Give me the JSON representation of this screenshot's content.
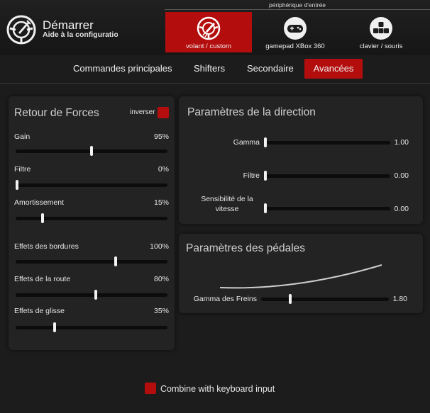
{
  "header": {
    "title": "Démarrer",
    "subtitle": "Aide à la configuratio",
    "device_caption": "périphérique d'entrée",
    "devices": [
      {
        "label": "volant / custom",
        "icon": "steering-wheel-icon",
        "active": true
      },
      {
        "label": "gamepad XBox 360",
        "icon": "gamepad-icon",
        "active": false
      },
      {
        "label": "clavier / souris",
        "icon": "keyboard-icon",
        "active": false
      }
    ]
  },
  "tabs": [
    {
      "label": "Commandes principales",
      "active": false
    },
    {
      "label": "Shifters",
      "active": false
    },
    {
      "label": "Secondaire",
      "active": false
    },
    {
      "label": "Avancées",
      "active": true
    }
  ],
  "force_feedback": {
    "title": "Retour de Forces",
    "invert_label": "inverser",
    "invert_checked": true,
    "sliders": [
      {
        "label": "Gain",
        "value": "95%",
        "level": 0.5
      },
      {
        "label": "Filtre",
        "value": "0%",
        "level": 0.0
      },
      {
        "label": "Amortissement",
        "value": "15%",
        "level": 0.17
      },
      {
        "label": "Effets des bordures",
        "value": "100%",
        "level": 0.66
      },
      {
        "label": "Effets de la route",
        "value": "80%",
        "level": 0.53
      },
      {
        "label": "Effets de glisse",
        "value": "35%",
        "level": 0.25
      }
    ]
  },
  "steering": {
    "title": "Paramètres de la direction",
    "sliders": [
      {
        "label": "Gamma",
        "value": "1.00",
        "level": 0.0
      },
      {
        "label": "Filtre",
        "value": "0.00",
        "level": 0.0
      },
      {
        "label": "Sensibilité de la vitesse",
        "value": "0.00",
        "level": 0.0
      }
    ]
  },
  "pedals": {
    "title": "Paramètres des pédales",
    "sliders": [
      {
        "label": "Gamma des Freins",
        "value": "1.80",
        "level": 0.22
      }
    ]
  },
  "combine": {
    "label": "Combine with keyboard input",
    "checked": true
  },
  "colors": {
    "accent": "#b40d0d",
    "background": "#1c1c1c",
    "panel": "#232323"
  }
}
